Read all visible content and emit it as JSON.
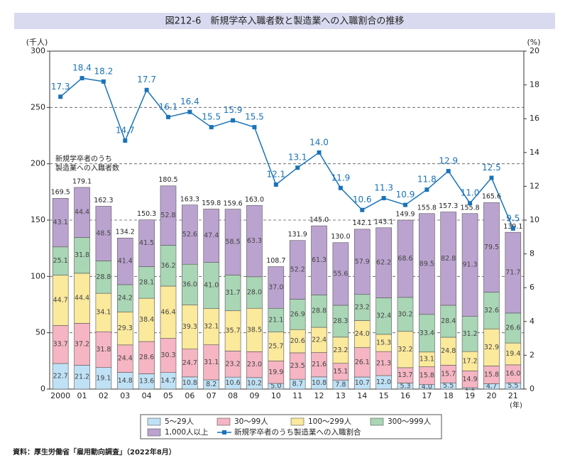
{
  "chart_data": {
    "type": "bar",
    "title": "図212-6　新規学卒入職者数と製造業への入職割合の推移",
    "y_label": "(千人)",
    "y2_label": "(%)",
    "x_label": "(年)",
    "source": "資料：厚生労働省「雇用動向調査」（2022年8月）",
    "annotation": [
      "新規学卒者のうち",
      "製造業への入職者数"
    ],
    "categories": [
      "2000",
      "01",
      "02",
      "03",
      "04",
      "05",
      "06",
      "07",
      "08",
      "09",
      "10",
      "11",
      "12",
      "13",
      "14",
      "15",
      "16",
      "17",
      "18",
      "19",
      "20",
      "21"
    ],
    "ylim": [
      0,
      300
    ],
    "yticks": [
      0,
      50,
      100,
      150,
      200,
      250,
      300
    ],
    "y2lim": [
      0,
      20
    ],
    "y2ticks": [
      0,
      2,
      4,
      6,
      8,
      10,
      12,
      14,
      16,
      18,
      20
    ],
    "grid": true,
    "legend": "bottom",
    "series": [
      {
        "name": "5～29人",
        "color": "#bfe1f6",
        "values": [
          22.7,
          21.2,
          19.1,
          14.8,
          13.6,
          14.7,
          10.8,
          8.2,
          10.6,
          10.2,
          5.0,
          8.7,
          10.8,
          7.8,
          10.7,
          12.0,
          5.3,
          4.0,
          5.5,
          1.2,
          4.7,
          5.5
        ],
        "value_labels": [
          "22.7",
          "21.2",
          "19.1",
          "14.8",
          "13.6",
          "14.7",
          "10.8",
          "8.2",
          "10.6",
          "10.2",
          "5.0",
          "8.7",
          "10.8",
          "7.8",
          "10.7",
          "12.0",
          "5.3",
          "4.0",
          "5.5",
          "1.2",
          "4.7",
          "5.5"
        ]
      },
      {
        "name": "30～99人",
        "color": "#f5b5c3",
        "values": [
          33.7,
          37.2,
          31.8,
          24.4,
          28.6,
          30.3,
          24.7,
          31.1,
          23.2,
          23.0,
          19.9,
          23.5,
          21.6,
          15.1,
          26.1,
          21.3,
          13.7,
          15.8,
          15.7,
          14.9,
          15.8,
          16.0
        ],
        "value_labels": [
          "33.7",
          "37.2",
          "31.8",
          "24.4",
          "28.6",
          "30.3",
          "24.7",
          "31.1",
          "23.2",
          "23.0",
          "19.9",
          "23.5",
          "21.6",
          "15.1",
          "26.1",
          "21.3",
          "13.7",
          "15.8",
          "15.7",
          "14.9",
          "15.8",
          "16.0"
        ]
      },
      {
        "name": "100～299人",
        "color": "#fbe99c",
        "values": [
          44.7,
          44.4,
          34.1,
          29.3,
          38.4,
          46.4,
          39.3,
          32.1,
          35.7,
          38.5,
          25.7,
          20.6,
          22.4,
          23.2,
          24.0,
          15.3,
          32.2,
          13.1,
          24.8,
          17.2,
          32.9,
          19.4
        ],
        "value_labels": [
          "44.7",
          "44.4",
          "34.1",
          "29.3",
          "38.4",
          "46.4",
          "39.3",
          "32.1",
          "35.7",
          "38.5",
          "25.7",
          "20.6",
          "22.4",
          "23.2",
          "24.0",
          "15.3",
          "32.2",
          "13.1",
          "24.8",
          "17.2",
          "32.9",
          "19.4"
        ]
      },
      {
        "name": "300～999人",
        "color": "#a9d6b5",
        "values": [
          25.1,
          31.8,
          28.8,
          24.2,
          28.1,
          36.2,
          36.0,
          41.0,
          31.7,
          28.0,
          21.1,
          26.9,
          28.8,
          28.3,
          23.2,
          32.4,
          30.2,
          33.4,
          28.4,
          31.2,
          32.6,
          26.6
        ],
        "value_labels": [
          "25.1",
          "31.8",
          "28.8",
          "24.2",
          "28.1",
          "36.2",
          "36.0",
          "41.0",
          "31.7",
          "28.0",
          "21.1",
          "26.9",
          "28.8",
          "28.3",
          "23.2",
          "32.4",
          "30.2",
          "33.4",
          "28.4",
          "31.2",
          "32.6",
          "26.6"
        ]
      },
      {
        "name": "1,000人以上",
        "color": "#bba3d0",
        "values": [
          43.1,
          44.4,
          48.5,
          41.4,
          41.5,
          52.8,
          52.6,
          47.4,
          58.5,
          63.3,
          37.0,
          52.2,
          61.3,
          55.6,
          57.9,
          62.2,
          68.6,
          89.5,
          82.8,
          91.3,
          79.5,
          71.7
        ],
        "value_labels": [
          "43.1",
          "44.4",
          "48.5",
          "41.4",
          "41.5",
          "52.8",
          "52.6",
          "47.4",
          "58.5",
          "63.3",
          "37.0",
          "52.2",
          "61.3",
          "55.6",
          "57.9",
          "62.2",
          "68.6",
          "89.5",
          "82.8",
          "91.3",
          "79.5",
          "71.7"
        ]
      },
      {
        "name": "新規学卒者のうち製造業への入職割合",
        "color": "#1a73b8",
        "type": "line",
        "axis": "y2",
        "values": [
          17.3,
          18.4,
          18.2,
          14.7,
          17.7,
          16.1,
          16.4,
          15.5,
          15.9,
          15.5,
          12.1,
          13.1,
          14.0,
          11.9,
          10.6,
          11.3,
          10.9,
          11.8,
          12.9,
          11.0,
          12.5,
          9.5
        ],
        "value_labels": [
          "17.3",
          "18.4",
          "18.2",
          "14.7",
          "17.7",
          "16.1",
          "16.4",
          "15.5",
          "15.9",
          "15.5",
          "12.1",
          "13.1",
          "14.0",
          "11.9",
          "10.6",
          "11.3",
          "10.9",
          "11.8",
          "12.9",
          "11.0",
          "12.5",
          "9.5"
        ]
      }
    ],
    "totals": [
      169.5,
      179.1,
      162.3,
      134.2,
      150.3,
      180.5,
      163.3,
      159.8,
      159.6,
      163.0,
      108.7,
      131.9,
      145.0,
      130.0,
      142.1,
      143.1,
      149.9,
      155.8,
      157.3,
      155.8,
      165.6,
      139.1
    ],
    "total_labels": [
      "169.5",
      "179.1",
      "162.3",
      "134.2",
      "150.3",
      "180.5",
      "163.3",
      "159.8",
      "159.6",
      "163.0",
      "108.7",
      "131.9",
      "145.0",
      "130.0",
      "142.1",
      "143.1",
      "149.9",
      "155.8",
      "157.3",
      "155.8",
      "165.6",
      "139.1"
    ]
  }
}
